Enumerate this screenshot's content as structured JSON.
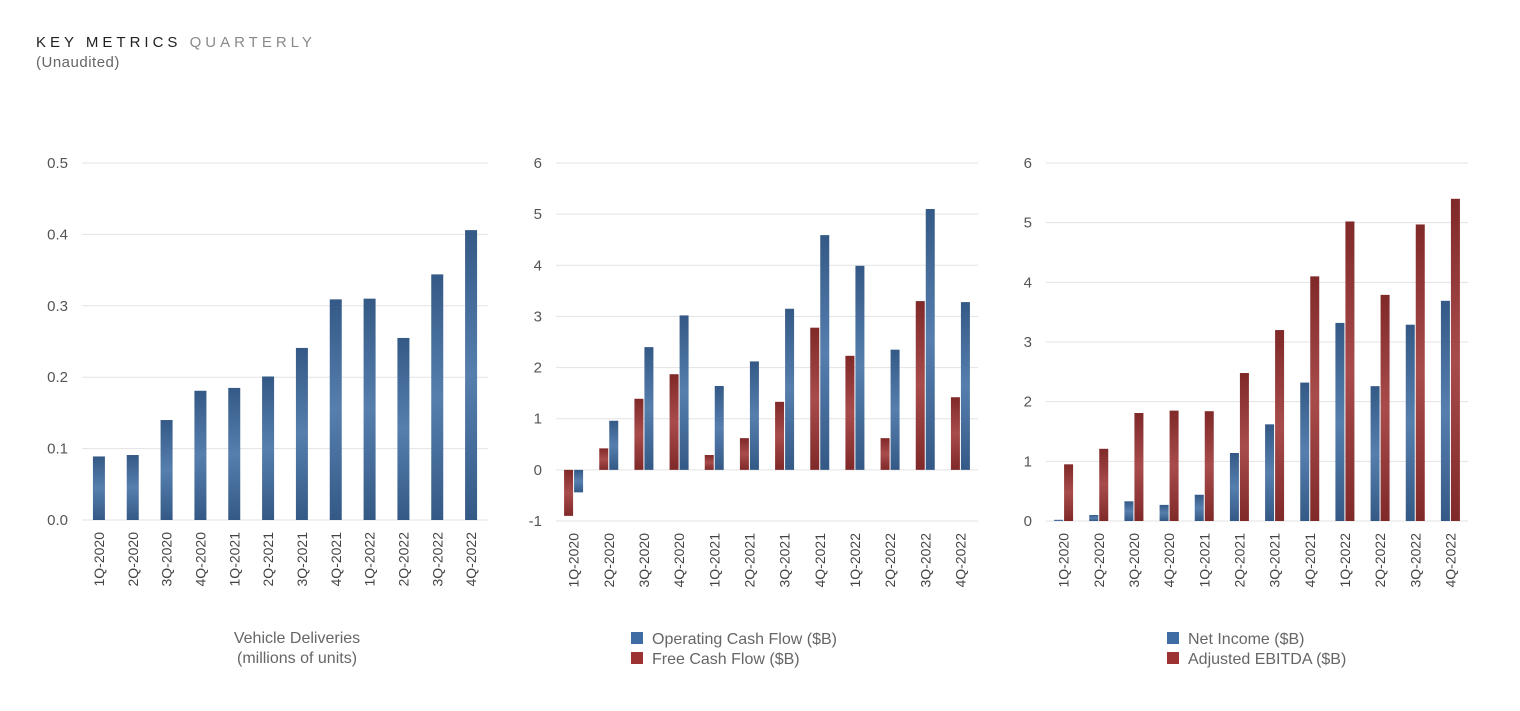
{
  "header": {
    "title_main": "KEY METRICS",
    "title_accent": "QUARTERLY",
    "subtitle": "(Unaudited)"
  },
  "colors": {
    "blue": "#3f6da3",
    "red": "#9c3232",
    "grid": "#e3e3e3"
  },
  "chart_data": [
    {
      "type": "bar",
      "categories": [
        "1Q-2020",
        "2Q-2020",
        "3Q-2020",
        "4Q-2020",
        "1Q-2021",
        "2Q-2021",
        "3Q-2021",
        "4Q-2021",
        "1Q-2022",
        "2Q-2022",
        "3Q-2022",
        "4Q-2022"
      ],
      "yticks": [
        "0.0",
        "0.1",
        "0.2",
        "0.3",
        "0.4",
        "0.5"
      ],
      "ylim": [
        0,
        0.5
      ],
      "caption": [
        "Vehicle Deliveries",
        "(millions of units)"
      ],
      "series": [
        {
          "color": "#3f6da3",
          "values": [
            0.089,
            0.091,
            0.14,
            0.181,
            0.185,
            0.201,
            0.241,
            0.309,
            0.31,
            0.255,
            0.344,
            0.406
          ]
        }
      ]
    },
    {
      "type": "bar",
      "categories": [
        "1Q-2020",
        "2Q-2020",
        "3Q-2020",
        "4Q-2020",
        "1Q-2021",
        "2Q-2021",
        "3Q-2021",
        "4Q-2021",
        "1Q-2022",
        "2Q-2022",
        "3Q-2022",
        "4Q-2022"
      ],
      "yticks": [
        "-1",
        "0",
        "1",
        "2",
        "3",
        "4",
        "5",
        "6"
      ],
      "ylim": [
        -1,
        6
      ],
      "legend": [
        "Operating Cash Flow ($B)",
        "Free Cash Flow ($B)"
      ],
      "series": [
        {
          "name": "Free Cash Flow ($B)",
          "color": "#9c3232",
          "values": [
            -0.9,
            0.42,
            1.39,
            1.87,
            0.29,
            0.62,
            1.33,
            2.78,
            2.23,
            0.62,
            3.3,
            1.42
          ]
        },
        {
          "name": "Operating Cash Flow ($B)",
          "color": "#3f6da3",
          "values": [
            -0.44,
            0.96,
            2.4,
            3.02,
            1.64,
            2.12,
            3.15,
            4.59,
            3.99,
            2.35,
            5.1,
            3.28
          ]
        }
      ]
    },
    {
      "type": "bar",
      "categories": [
        "1Q-2020",
        "2Q-2020",
        "3Q-2020",
        "4Q-2020",
        "1Q-2021",
        "2Q-2021",
        "3Q-2021",
        "4Q-2021",
        "1Q-2022",
        "2Q-2022",
        "3Q-2022",
        "4Q-2022"
      ],
      "yticks": [
        "0",
        "1",
        "2",
        "3",
        "4",
        "5",
        "6"
      ],
      "ylim": [
        0,
        6
      ],
      "legend": [
        "Net Income ($B)",
        "Adjusted EBITDA ($B)"
      ],
      "series": [
        {
          "name": "Net Income ($B)",
          "color": "#3f6da3",
          "values": [
            0.02,
            0.1,
            0.33,
            0.27,
            0.44,
            1.14,
            1.62,
            2.32,
            3.32,
            2.26,
            3.29,
            3.69
          ]
        },
        {
          "name": "Adjusted EBITDA ($B)",
          "color": "#9c3232",
          "values": [
            0.95,
            1.21,
            1.81,
            1.85,
            1.84,
            2.48,
            3.2,
            4.1,
            5.02,
            3.79,
            4.97,
            5.4
          ]
        }
      ]
    }
  ]
}
